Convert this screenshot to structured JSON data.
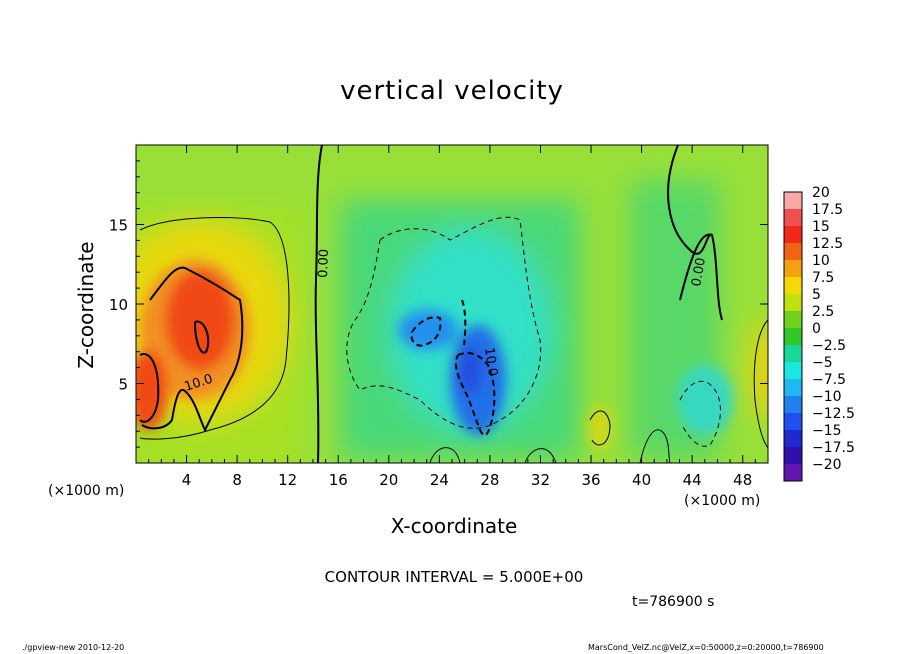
{
  "chart_data": {
    "type": "heatmap",
    "title": "vertical velocity",
    "xlabel": "X-coordinate",
    "ylabel": "Z-coordinate",
    "x_unit_note_left": "(×1000 m)",
    "x_unit_note_right": "(×1000 m)",
    "xlim": [
      0,
      50
    ],
    "ylim": [
      0,
      20
    ],
    "x_ticks": [
      4,
      8,
      12,
      16,
      20,
      24,
      28,
      32,
      36,
      40,
      44,
      48
    ],
    "x_tick_labels": [
      "4",
      "8",
      "12",
      "16",
      "20",
      "24",
      "28",
      "32",
      "36",
      "40",
      "44",
      "48"
    ],
    "y_ticks": [
      5,
      10,
      15
    ],
    "y_tick_labels": [
      "5",
      "10",
      "15"
    ],
    "colorbar_levels": [
      "20",
      "17.5",
      "15",
      "12.5",
      "10",
      "7.5",
      "5",
      "2.5",
      "0",
      "−2.5",
      "−5",
      "−7.5",
      "−10",
      "−12.5",
      "−15",
      "−17.5",
      "−20"
    ],
    "colorbar_colors": [
      "#f8a8a8",
      "#f05050",
      "#f02818",
      "#f06418",
      "#f4a010",
      "#f4d808",
      "#c0e010",
      "#70d020",
      "#30c828",
      "#18d898",
      "#18e8e0",
      "#20b8f0",
      "#2080f0",
      "#2050f0",
      "#2028d0",
      "#3010a8",
      "#6018b0"
    ],
    "contour_labels": [
      "0.00",
      "0.00",
      "10.0",
      "10.0"
    ],
    "contour_interval": "CONTOUR INTERVAL = 5.000E+00",
    "time_label": "t=786900 s",
    "features": [
      {
        "x": 5,
        "z": 8,
        "value": 15
      },
      {
        "x": 1.5,
        "z": 4.5,
        "value": 12
      },
      {
        "x": 50,
        "z": 6,
        "value": 7
      },
      {
        "x": 26.5,
        "z": 6,
        "value": -15
      },
      {
        "x": 23,
        "z": 8,
        "value": -11
      },
      {
        "x": 28,
        "z": 3.5,
        "value": -12
      },
      {
        "x": 25,
        "z": 11,
        "value": -5
      },
      {
        "x": 44,
        "z": 4,
        "value": -4
      },
      {
        "x": 36.5,
        "z": 2.5,
        "value": 6
      }
    ]
  },
  "footer_left": "./gpview-new  2010-12-20",
  "footer_right": "MarsCond_VelZ.nc@VelZ,x=0:50000,z=0:20000,t=786900"
}
